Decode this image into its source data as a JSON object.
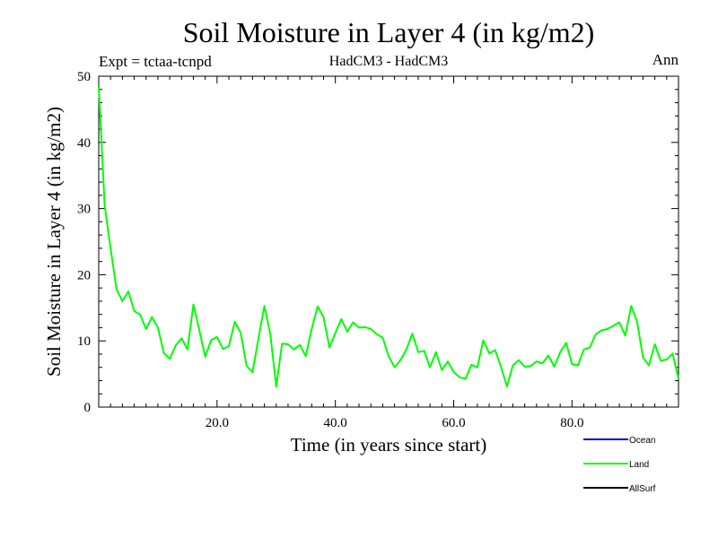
{
  "header": {
    "title": "Soil Moisture in Layer 4 (in kg/m2)",
    "expt": "Expt = tctaa-tcnpd",
    "model": "HadCM3 - HadCM3",
    "period": "Ann"
  },
  "chart_data": {
    "type": "line",
    "title": "Soil Moisture in Layer 4 (in kg/m2)",
    "xlabel": "Time (in years since start)",
    "ylabel": "Soil Moisture in Layer 4 (in kg/m2)",
    "xlim": [
      0,
      98
    ],
    "ylim": [
      0,
      50
    ],
    "x_ticks": [
      20,
      40,
      60,
      80
    ],
    "x_tick_labels": [
      "20.0",
      "40.0",
      "60.0",
      "80.0"
    ],
    "y_ticks": [
      0,
      10,
      20,
      30,
      40,
      50
    ],
    "y_tick_labels": [
      "0",
      "10",
      "20",
      "30",
      "40",
      "50"
    ],
    "grid": false,
    "legend_position": "bottom-right",
    "legend": [
      {
        "name": "Ocean",
        "color": "#0000cc"
      },
      {
        "name": "Land",
        "color": "#00ff00"
      },
      {
        "name": "AllSurf",
        "color": "#000000"
      }
    ],
    "series": [
      {
        "name": "Land",
        "color": "#00ff00",
        "x": [
          0,
          1,
          2,
          3,
          4,
          5,
          6,
          7,
          8,
          9,
          10,
          11,
          12,
          13,
          14,
          15,
          16,
          17,
          18,
          19,
          20,
          21,
          22,
          23,
          24,
          25,
          26,
          27,
          28,
          29,
          30,
          31,
          32,
          33,
          34,
          35,
          36,
          37,
          38,
          39,
          40,
          41,
          42,
          43,
          44,
          45,
          46,
          47,
          48,
          49,
          50,
          51,
          52,
          53,
          54,
          55,
          56,
          57,
          58,
          59,
          60,
          61,
          62,
          63,
          64,
          65,
          66,
          67,
          68,
          69,
          70,
          71,
          72,
          73,
          74,
          75,
          76,
          77,
          78,
          79,
          80,
          81,
          82,
          83,
          84,
          85,
          86,
          87,
          88,
          89,
          90,
          91,
          92,
          93,
          94,
          95,
          96,
          97,
          98
        ],
        "y": [
          48.5,
          30.5,
          24.0,
          17.8,
          16.0,
          17.5,
          14.5,
          14.0,
          11.8,
          13.6,
          12.0,
          8.2,
          7.3,
          9.3,
          10.4,
          8.7,
          15.5,
          11.6,
          7.6,
          10.1,
          10.6,
          8.8,
          9.2,
          12.9,
          11.2,
          6.2,
          5.3,
          10.4,
          15.3,
          11.0,
          3.1,
          9.6,
          9.5,
          8.7,
          9.4,
          7.7,
          11.8,
          15.2,
          13.6,
          9.0,
          11.2,
          13.3,
          11.4,
          12.8,
          12.0,
          12.1,
          11.8,
          11.0,
          10.5,
          7.7,
          6.0,
          7.1,
          8.7,
          11.1,
          8.3,
          8.5,
          6.0,
          8.3,
          5.6,
          6.9,
          5.3,
          4.5,
          4.3,
          6.4,
          6.0,
          10.1,
          8.1,
          8.6,
          6.1,
          3.1,
          6.3,
          7.1,
          6.1,
          6.2,
          6.9,
          6.6,
          7.8,
          6.1,
          8.3,
          9.7,
          6.5,
          6.3,
          8.7,
          9.0,
          11.0,
          11.6,
          11.8,
          12.3,
          12.8,
          10.8,
          15.3,
          12.9,
          7.5,
          6.3,
          9.5,
          7.0,
          7.2,
          8.1,
          4.3
        ]
      }
    ]
  }
}
